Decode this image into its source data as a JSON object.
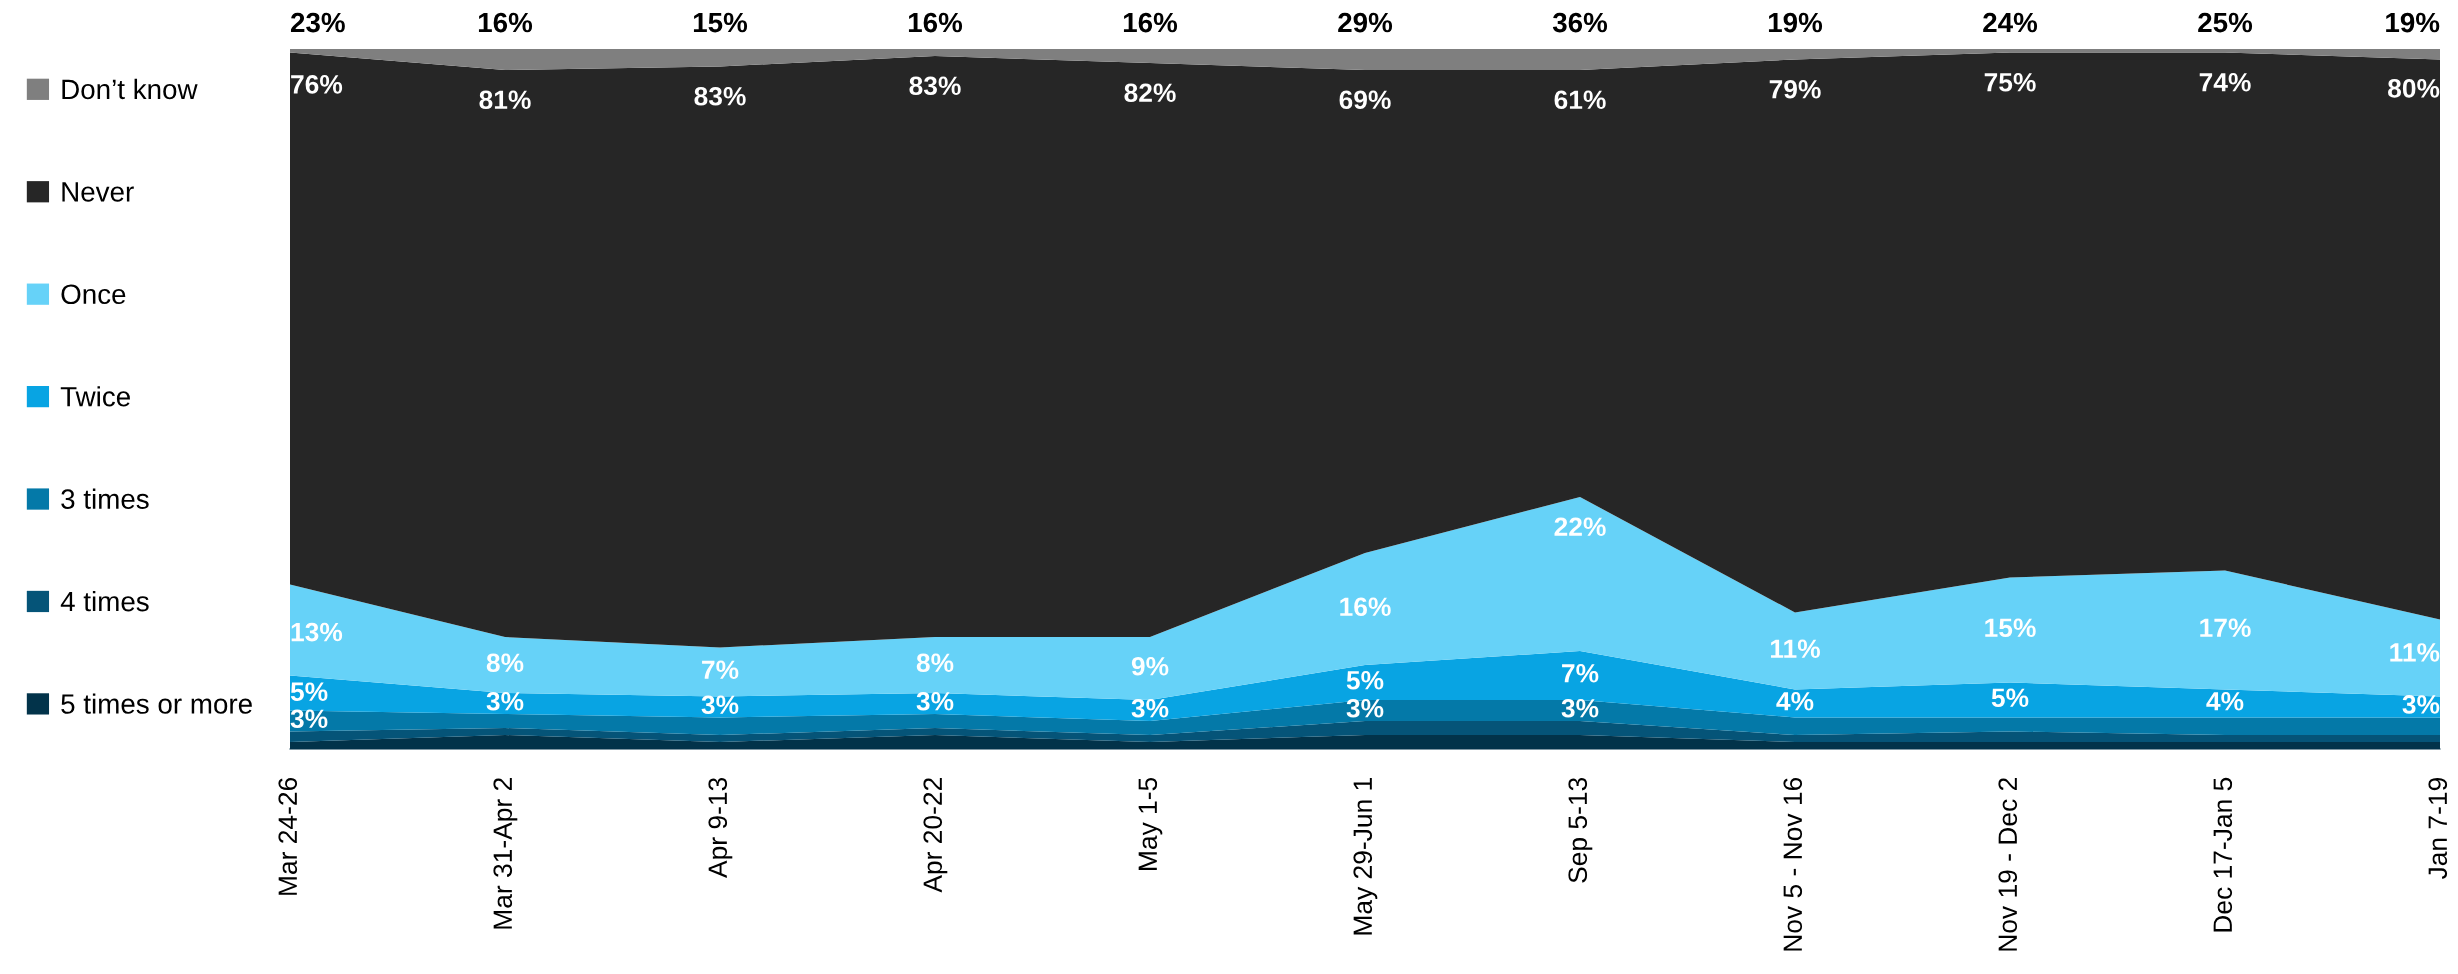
{
  "chart_data": {
    "type": "area",
    "stacked": true,
    "categories": [
      "Mar 24-26",
      "Mar 31-Apr 2",
      "Apr 9-13",
      "Apr 20-22",
      "May 1-5",
      "May 29-Jun 1",
      "Sep 5-13",
      "Nov 5 - Nov 16",
      "Nov 19 - Dec 2",
      "Dec 17-Jan 5",
      "Jan 7-19"
    ],
    "ylim": [
      0,
      100
    ],
    "tick_labels": "x",
    "legend": "left",
    "series": [
      {
        "name": "5 times or more",
        "color": "#02334a",
        "values": [
          1,
          2,
          1,
          2,
          1,
          2,
          2,
          1,
          1,
          1,
          1
        ]
      },
      {
        "name": "4 times",
        "color": "#055478",
        "values": [
          1.5,
          1,
          1,
          1,
          1,
          2,
          2,
          1,
          1.5,
          1,
          1
        ]
      },
      {
        "name": "3 times",
        "color": "#0479a8",
        "values": [
          3,
          2,
          2.5,
          2,
          2,
          3,
          3,
          2.5,
          2,
          2.5,
          2.5
        ],
        "value_labels": [
          "3%",
          null,
          null,
          null,
          null,
          "3%",
          "3%",
          null,
          null,
          null,
          null
        ]
      },
      {
        "name": "Twice",
        "color": "#08a4e3",
        "values": [
          5,
          3,
          3,
          3,
          3,
          5,
          7,
          4,
          5,
          4,
          3
        ],
        "value_labels": [
          "5%",
          "3%",
          "3%",
          "3%",
          "3%",
          "5%",
          "7%",
          "4%",
          "5%",
          "4%",
          "3%"
        ]
      },
      {
        "name": "Once",
        "color": "#66d2f8",
        "values": [
          13,
          8,
          7,
          8,
          9,
          16,
          22,
          11,
          15,
          17,
          11
        ],
        "value_labels": [
          "13%",
          "8%",
          "7%",
          "8%",
          "9%",
          "16%",
          "22%",
          "11%",
          "15%",
          "17%",
          "11%"
        ]
      },
      {
        "name": "Never",
        "color": "#262626",
        "values": [
          76,
          81,
          83,
          83,
          82,
          69,
          61,
          79,
          75,
          74,
          80
        ],
        "value_labels": [
          "76%",
          "81%",
          "83%",
          "83%",
          "82%",
          "69%",
          "61%",
          "79%",
          "75%",
          "74%",
          "80%"
        ]
      },
      {
        "name": "Don’t know",
        "color": "#7f7f7f",
        "values": [
          0.5,
          3,
          2.5,
          1,
          2,
          3,
          3,
          1.5,
          0.5,
          0.5,
          1.5
        ]
      }
    ],
    "annotations": [
      "23%",
      "16%",
      "15%",
      "16%",
      "16%",
      "29%",
      "36%",
      "19%",
      "24%",
      "25%",
      "19%"
    ]
  }
}
